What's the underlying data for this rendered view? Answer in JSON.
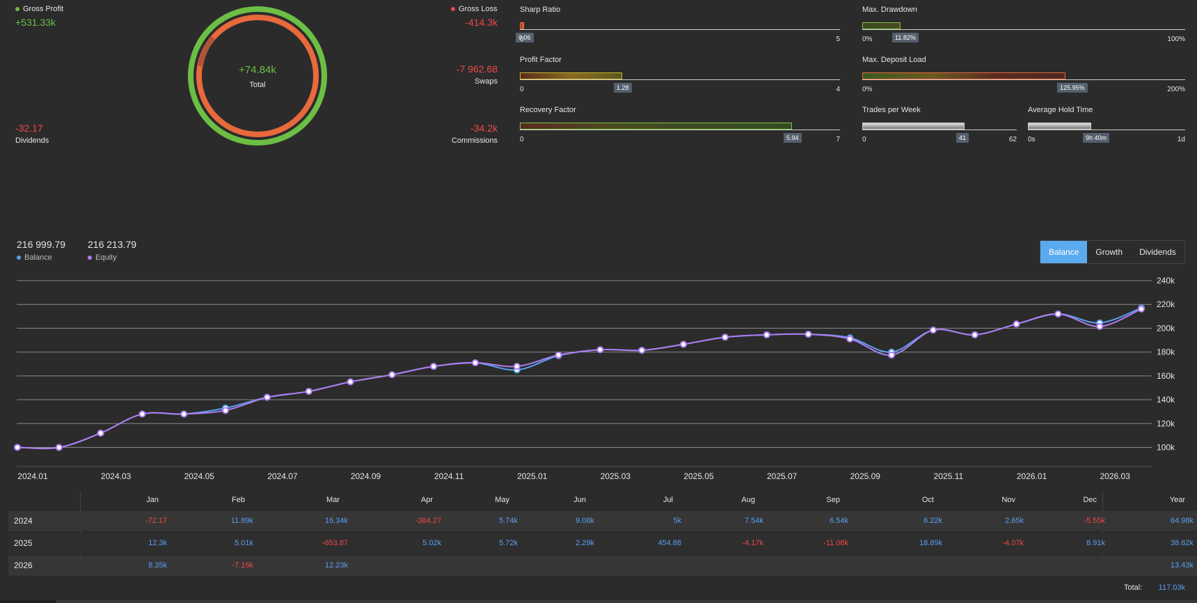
{
  "summary": {
    "gross_profit": {
      "label": "Gross Profit",
      "value": "+531.33k",
      "color": "#6dbe45"
    },
    "gross_loss": {
      "label": "Gross Loss",
      "value": "-414.3k",
      "color": "#f04848"
    },
    "total": {
      "label": "Total",
      "value": "+74.84k"
    },
    "swaps": {
      "label": "Swaps",
      "value": "-7 962.68"
    },
    "dividends": {
      "label": "Dividends",
      "value": "-32.17"
    },
    "commissions": {
      "label": "Commissions",
      "value": "-34.2k"
    }
  },
  "metrics": {
    "sharp_ratio": {
      "title": "Sharp Ratio",
      "value": "0.06",
      "min": "0",
      "max": "5",
      "fraction": 0.012
    },
    "profit_factor": {
      "title": "Profit Factor",
      "value": "1.28",
      "min": "0",
      "max": "4",
      "fraction": 0.32
    },
    "recovery_factor": {
      "title": "Recovery Factor",
      "value": "5.94",
      "min": "0",
      "max": "7",
      "fraction": 0.849
    },
    "max_drawdown": {
      "title": "Max. Drawdown",
      "value": "11.82%",
      "min": "0%",
      "max": "100%",
      "fraction": 0.1182
    },
    "max_deposit_load": {
      "title": "Max. Deposit Load",
      "value": "125.95%",
      "min": "0%",
      "max": "200%",
      "fraction": 0.63
    },
    "trades_per_week": {
      "title": "Trades per Week",
      "value": "41",
      "min": "0",
      "max": "62",
      "fraction": 0.661
    },
    "avg_hold_time": {
      "title": "Average Hold Time",
      "value": "9h 40m",
      "min": "0s",
      "max": "1d",
      "fraction": 0.403
    }
  },
  "legend": {
    "balance_value": "216 999.79",
    "balance_label": "Balance",
    "equity_value": "216 213.79",
    "equity_label": "Equity",
    "balance_color": "#5aa0f0",
    "equity_color": "#b07cf0"
  },
  "tabs": [
    "Balance",
    "Growth",
    "Dividends"
  ],
  "active_tab": "Balance",
  "chart_data": {
    "type": "line",
    "x_ticks": [
      "2024.01",
      "2024.03",
      "2024.05",
      "2024.07",
      "2024.09",
      "2024.11",
      "2025.01",
      "2025.03",
      "2025.05",
      "2025.07",
      "2025.09",
      "2025.11",
      "2026.01",
      "2026.03"
    ],
    "y_ticks": [
      "100k",
      "120k",
      "140k",
      "160k",
      "180k",
      "200k",
      "220k",
      "240k"
    ],
    "ylim": [
      88000,
      240000
    ],
    "x_months": [
      "2024.01",
      "2024.02",
      "2024.03",
      "2024.04",
      "2024.05",
      "2024.06",
      "2024.07",
      "2024.08",
      "2024.09",
      "2024.10",
      "2024.11",
      "2024.12",
      "2025.01",
      "2025.02",
      "2025.03",
      "2025.04",
      "2025.05",
      "2025.06",
      "2025.07",
      "2025.08",
      "2025.09",
      "2025.10",
      "2025.11",
      "2025.12",
      "2026.01",
      "2026.02",
      "2026.03",
      "2026.04"
    ],
    "series": [
      {
        "name": "Balance",
        "color": "#5aa0f0",
        "values": [
          100000,
          99900,
          112000,
          128000,
          128000,
          133000,
          142000,
          147000,
          155000,
          161000,
          168000,
          171000,
          165000,
          177000,
          182000,
          181500,
          186500,
          192500,
          194500,
          195000,
          192000,
          180000,
          198500,
          194500,
          203500,
          212000,
          204500,
          217000
        ]
      },
      {
        "name": "Equity",
        "color": "#b07cf0",
        "values": [
          100000,
          99900,
          112000,
          128000,
          128000,
          131000,
          142000,
          147000,
          155000,
          161000,
          168000,
          171000,
          168000,
          177500,
          182000,
          181500,
          186500,
          192500,
          194500,
          195000,
          191000,
          177500,
          198500,
          194500,
          203500,
          212000,
          201500,
          216200
        ]
      }
    ],
    "grid": true,
    "y_axis_position": "right"
  },
  "table": {
    "headers": [
      "Jan",
      "Feb",
      "Mar",
      "Apr",
      "May",
      "Jun",
      "Jul",
      "Aug",
      "Sep",
      "Oct",
      "Nov",
      "Dec",
      "Year"
    ],
    "rows": [
      {
        "year": "2024",
        "cells": [
          "-72.17",
          "11.89k",
          "16.34k",
          "-384.27",
          "5.74k",
          "9.08k",
          "5k",
          "7.54k",
          "6.54k",
          "6.22k",
          "2.65k",
          "-5.55k",
          "64.98k"
        ]
      },
      {
        "year": "2025",
        "cells": [
          "12.3k",
          "5.01k",
          "-653.87",
          "5.02k",
          "5.72k",
          "2.29k",
          "454.88",
          "-4.17k",
          "-11.08k",
          "18.89k",
          "-4.07k",
          "8.91k",
          "38.62k"
        ]
      },
      {
        "year": "2026",
        "cells": [
          "8.35k",
          "-7.16k",
          "12.23k",
          "",
          "",
          "",
          "",
          "",
          "",
          "",
          "",
          "",
          "13.43k"
        ]
      }
    ],
    "total_label": "Total:",
    "total_value": "117.03k"
  }
}
